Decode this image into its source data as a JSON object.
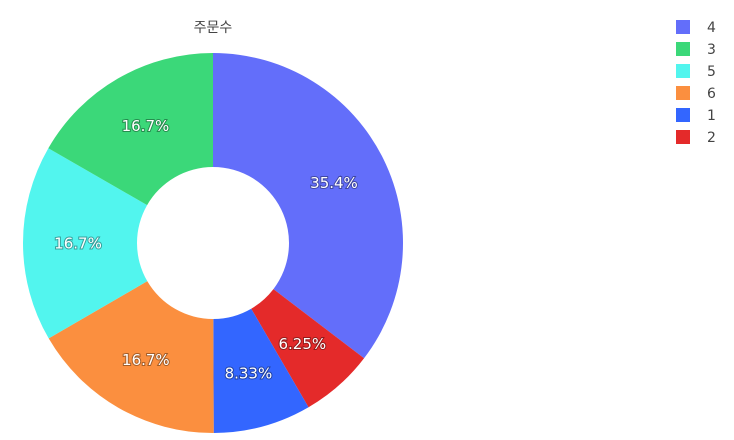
{
  "chart_data": {
    "type": "pie",
    "hole": true,
    "title": "주문수",
    "legend_position": "top-right",
    "slices": [
      {
        "label": "4",
        "value": 35.4,
        "text": "35.4%",
        "color": "#636efa"
      },
      {
        "label": "2",
        "value": 6.25,
        "text": "6.25%",
        "color": "#e42a2a"
      },
      {
        "label": "1",
        "value": 8.33,
        "text": "8.33%",
        "color": "#3366ff"
      },
      {
        "label": "6",
        "value": 16.7,
        "text": "16.7%",
        "color": "#fb8f3f"
      },
      {
        "label": "5",
        "value": 16.7,
        "text": "16.7%",
        "color": "#52f5ee"
      },
      {
        "label": "3",
        "value": 16.7,
        "text": "16.7%",
        "color": "#3bd879"
      }
    ],
    "legend_order": [
      "4",
      "3",
      "5",
      "6",
      "1",
      "2"
    ]
  }
}
